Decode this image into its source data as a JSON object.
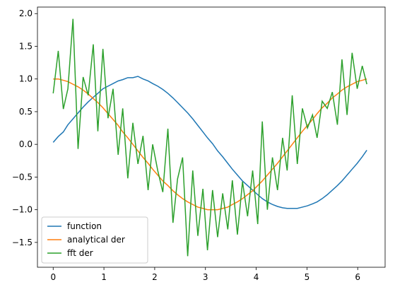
{
  "chart_data": {
    "type": "line",
    "x": [
      0,
      0.1,
      0.2,
      0.29,
      0.39,
      0.49,
      0.59,
      0.69,
      0.79,
      0.88,
      0.98,
      1.08,
      1.18,
      1.28,
      1.37,
      1.47,
      1.57,
      1.67,
      1.77,
      1.87,
      1.96,
      2.06,
      2.16,
      2.26,
      2.36,
      2.45,
      2.55,
      2.65,
      2.75,
      2.85,
      2.95,
      3.04,
      3.14,
      3.24,
      3.34,
      3.44,
      3.53,
      3.63,
      3.73,
      3.83,
      3.93,
      4.03,
      4.12,
      4.22,
      4.32,
      4.42,
      4.52,
      4.61,
      4.71,
      4.81,
      4.91,
      5.01,
      5.11,
      5.2,
      5.3,
      5.4,
      5.5,
      5.6,
      5.69,
      5.79,
      5.89,
      5.99,
      6.09,
      6.18
    ],
    "series": [
      {
        "name": "function",
        "color": "#1f77b4",
        "values": [
          0.03,
          0.12,
          0.19,
          0.3,
          0.39,
          0.48,
          0.57,
          0.65,
          0.72,
          0.78,
          0.85,
          0.89,
          0.93,
          0.97,
          0.99,
          1.02,
          1.02,
          1.04,
          1.0,
          0.97,
          0.93,
          0.89,
          0.84,
          0.78,
          0.71,
          0.64,
          0.56,
          0.48,
          0.39,
          0.29,
          0.19,
          0.1,
          0.01,
          -0.1,
          -0.19,
          -0.29,
          -0.38,
          -0.47,
          -0.56,
          -0.63,
          -0.7,
          -0.77,
          -0.83,
          -0.88,
          -0.92,
          -0.95,
          -0.97,
          -0.98,
          -0.98,
          -0.98,
          -0.96,
          -0.94,
          -0.91,
          -0.88,
          -0.83,
          -0.77,
          -0.7,
          -0.63,
          -0.56,
          -0.47,
          -0.38,
          -0.29,
          -0.19,
          -0.09
        ]
      },
      {
        "name": "analytical der",
        "color": "#ff7f0e",
        "values": [
          1.0,
          1.0,
          0.98,
          0.96,
          0.92,
          0.88,
          0.83,
          0.77,
          0.7,
          0.64,
          0.56,
          0.47,
          0.38,
          0.29,
          0.19,
          0.1,
          0.0,
          -0.1,
          -0.2,
          -0.29,
          -0.38,
          -0.47,
          -0.56,
          -0.63,
          -0.71,
          -0.77,
          -0.83,
          -0.88,
          -0.92,
          -0.96,
          -0.98,
          -1.0,
          -1.0,
          -1.0,
          -0.98,
          -0.96,
          -0.92,
          -0.88,
          -0.83,
          -0.77,
          -0.71,
          -0.63,
          -0.56,
          -0.47,
          -0.38,
          -0.29,
          -0.19,
          -0.1,
          0.0,
          0.1,
          0.2,
          0.29,
          0.38,
          0.47,
          0.56,
          0.63,
          0.71,
          0.77,
          0.83,
          0.88,
          0.92,
          0.96,
          0.98,
          1.0
        ]
      },
      {
        "name": "fft der",
        "color": "#2ca02c",
        "values": [
          0.78,
          1.43,
          0.54,
          0.85,
          1.92,
          -0.07,
          1.03,
          0.75,
          1.53,
          0.2,
          1.46,
          0.4,
          0.85,
          -0.16,
          0.55,
          -0.52,
          0.33,
          -0.3,
          0.13,
          -0.7,
          0.0,
          -0.4,
          -0.73,
          0.24,
          -1.2,
          -0.53,
          -0.2,
          -1.71,
          -0.4,
          -1.4,
          -0.68,
          -1.62,
          -0.7,
          -1.42,
          -0.75,
          -1.3,
          -0.55,
          -1.38,
          -0.57,
          -1.1,
          -0.4,
          -1.22,
          0.35,
          -1.0,
          -0.2,
          -0.7,
          0.1,
          -0.4,
          0.75,
          -0.3,
          0.55,
          0.25,
          0.45,
          0.1,
          0.66,
          0.55,
          0.8,
          0.3,
          1.3,
          0.45,
          1.4,
          0.85,
          1.2,
          0.92
        ]
      }
    ],
    "xlim": [
      -0.31,
      6.54
    ],
    "xticks": [
      0,
      1,
      2,
      3,
      4,
      5,
      6
    ],
    "ylim": [
      -1.88,
      2.1
    ],
    "yticks": [
      {
        "value": -1.5,
        "label": "−1.5"
      },
      {
        "value": -1,
        "label": "−1.0"
      },
      {
        "value": -0.5,
        "label": "−0.5"
      },
      {
        "value": 0,
        "label": "0.0"
      },
      {
        "value": 0.5,
        "label": "0.5"
      },
      {
        "value": 1,
        "label": "1.0"
      },
      {
        "value": 1.5,
        "label": "1.5"
      },
      {
        "value": 2,
        "label": "2.0"
      }
    ],
    "legend": "lower left"
  }
}
